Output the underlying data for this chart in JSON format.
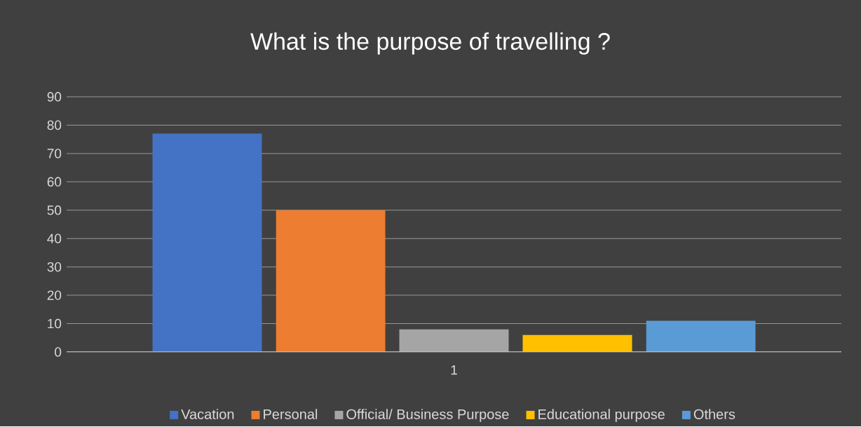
{
  "chart_data": {
    "type": "bar",
    "title": "What is the purpose of travelling ?",
    "categories": [
      "1"
    ],
    "series": [
      {
        "name": "Vacation",
        "color": "#4472c4",
        "values": [
          77
        ]
      },
      {
        "name": "Personal",
        "color": "#ed7d31",
        "values": [
          50
        ]
      },
      {
        "name": "Official/ Business Purpose",
        "color": "#a5a5a5",
        "values": [
          8
        ]
      },
      {
        "name": "Educational purpose",
        "color": "#ffc000",
        "values": [
          6
        ]
      },
      {
        "name": "Others",
        "color": "#5b9bd5",
        "values": [
          11
        ]
      }
    ],
    "ylim": [
      0,
      90
    ],
    "yticks": [
      0,
      10,
      20,
      30,
      40,
      50,
      60,
      70,
      80,
      90
    ],
    "grid": "y",
    "legend": "bottom"
  }
}
